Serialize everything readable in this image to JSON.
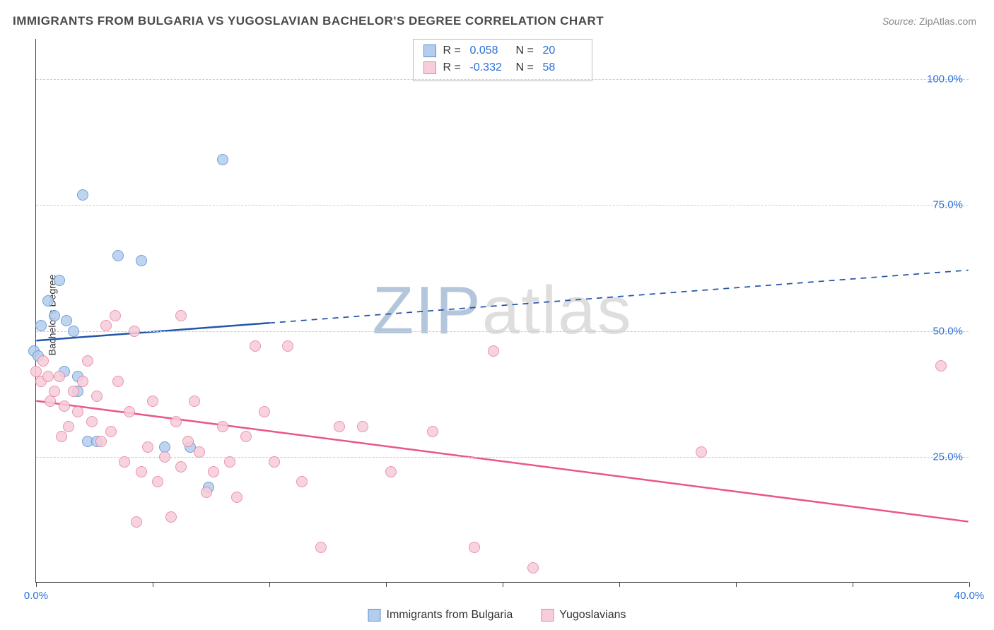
{
  "title": "IMMIGRANTS FROM BULGARIA VS YUGOSLAVIAN BACHELOR'S DEGREE CORRELATION CHART",
  "source_label": "Source:",
  "source_value": "ZipAtlas.com",
  "watermark_text": "ZIPatlas",
  "watermark_color_primary": "#6b8fb8",
  "watermark_color_secondary": "#bfbfbf",
  "chart": {
    "type": "scatter",
    "background_color": "#ffffff",
    "grid_color": "#cccccc",
    "axis_color": "#444444",
    "tick_label_color": "#2a6fd6",
    "y_label": "Bachelor's Degree",
    "x_range": [
      0,
      40
    ],
    "y_range": [
      0,
      108
    ],
    "y_ticks": [
      25,
      50,
      75,
      100
    ],
    "y_tick_labels": [
      "25.0%",
      "50.0%",
      "75.0%",
      "100.0%"
    ],
    "x_ticks": [
      0,
      5,
      10,
      15,
      20,
      25,
      30,
      35,
      40
    ],
    "x_tick_labels_shown": {
      "0": "0.0%",
      "40": "40.0%"
    },
    "point_radius": 8,
    "point_stroke_width": 1.2,
    "series": [
      {
        "name": "Immigrants from Bulgaria",
        "fill_color": "#b5cdec",
        "stroke_color": "#5a8fd0",
        "swatch_fill": "#b5cdec",
        "swatch_stroke": "#5a8fd0",
        "R": "0.058",
        "N": "20",
        "regression": {
          "x1": 0,
          "y1": 48,
          "x2": 40,
          "y2": 62,
          "solid_until_x": 10,
          "color": "#2456a8",
          "width": 2.5
        },
        "points": [
          [
            -0.1,
            46
          ],
          [
            0.1,
            45
          ],
          [
            0.2,
            51
          ],
          [
            0.5,
            56
          ],
          [
            0.8,
            53
          ],
          [
            1.0,
            60
          ],
          [
            1.3,
            52
          ],
          [
            1.6,
            50
          ],
          [
            1.8,
            41
          ],
          [
            2.0,
            77
          ],
          [
            2.2,
            28
          ],
          [
            2.6,
            28
          ],
          [
            3.5,
            65
          ],
          [
            4.5,
            64
          ],
          [
            8.0,
            84
          ],
          [
            1.2,
            42
          ],
          [
            1.8,
            38
          ],
          [
            5.5,
            27
          ],
          [
            6.6,
            27
          ],
          [
            7.4,
            19
          ]
        ]
      },
      {
        "name": "Yugoslavians",
        "fill_color": "#f6cdd8",
        "stroke_color": "#e97fa5",
        "swatch_fill": "#f6cdd8",
        "swatch_stroke": "#e97fa5",
        "R": "-0.332",
        "N": "58",
        "regression": {
          "x1": 0,
          "y1": 36,
          "x2": 40,
          "y2": 12,
          "solid_until_x": 40,
          "color": "#ea5685",
          "width": 2.5
        },
        "points": [
          [
            0.0,
            42
          ],
          [
            0.2,
            40
          ],
          [
            0.3,
            44
          ],
          [
            0.5,
            41
          ],
          [
            0.8,
            38
          ],
          [
            1.0,
            41
          ],
          [
            1.2,
            35
          ],
          [
            1.4,
            31
          ],
          [
            1.6,
            38
          ],
          [
            1.8,
            34
          ],
          [
            2.0,
            40
          ],
          [
            2.2,
            44
          ],
          [
            2.4,
            32
          ],
          [
            2.6,
            37
          ],
          [
            2.8,
            28
          ],
          [
            3.0,
            51
          ],
          [
            3.2,
            30
          ],
          [
            3.5,
            40
          ],
          [
            3.8,
            24
          ],
          [
            4.0,
            34
          ],
          [
            4.2,
            50
          ],
          [
            4.5,
            22
          ],
          [
            4.8,
            27
          ],
          [
            5.0,
            36
          ],
          [
            5.2,
            20
          ],
          [
            5.5,
            25
          ],
          [
            5.8,
            13
          ],
          [
            6.0,
            32
          ],
          [
            6.2,
            23
          ],
          [
            6.5,
            28
          ],
          [
            6.8,
            36
          ],
          [
            7.0,
            26
          ],
          [
            7.3,
            18
          ],
          [
            7.6,
            22
          ],
          [
            8.0,
            31
          ],
          [
            8.3,
            24
          ],
          [
            8.6,
            17
          ],
          [
            9.0,
            29
          ],
          [
            9.4,
            47
          ],
          [
            9.8,
            34
          ],
          [
            10.2,
            24
          ],
          [
            10.8,
            47
          ],
          [
            11.4,
            20
          ],
          [
            12.2,
            7
          ],
          [
            13.0,
            31
          ],
          [
            14.0,
            31
          ],
          [
            15.2,
            22
          ],
          [
            17.0,
            30
          ],
          [
            18.8,
            7
          ],
          [
            19.6,
            46
          ],
          [
            21.3,
            3
          ],
          [
            28.5,
            26
          ],
          [
            38.8,
            43
          ],
          [
            3.4,
            53
          ],
          [
            6.2,
            53
          ],
          [
            0.6,
            36
          ],
          [
            1.1,
            29
          ],
          [
            4.3,
            12
          ]
        ]
      }
    ],
    "stats_labels": {
      "R": "R =",
      "N": "N ="
    },
    "stat_value_color": "#2a6fd6"
  }
}
